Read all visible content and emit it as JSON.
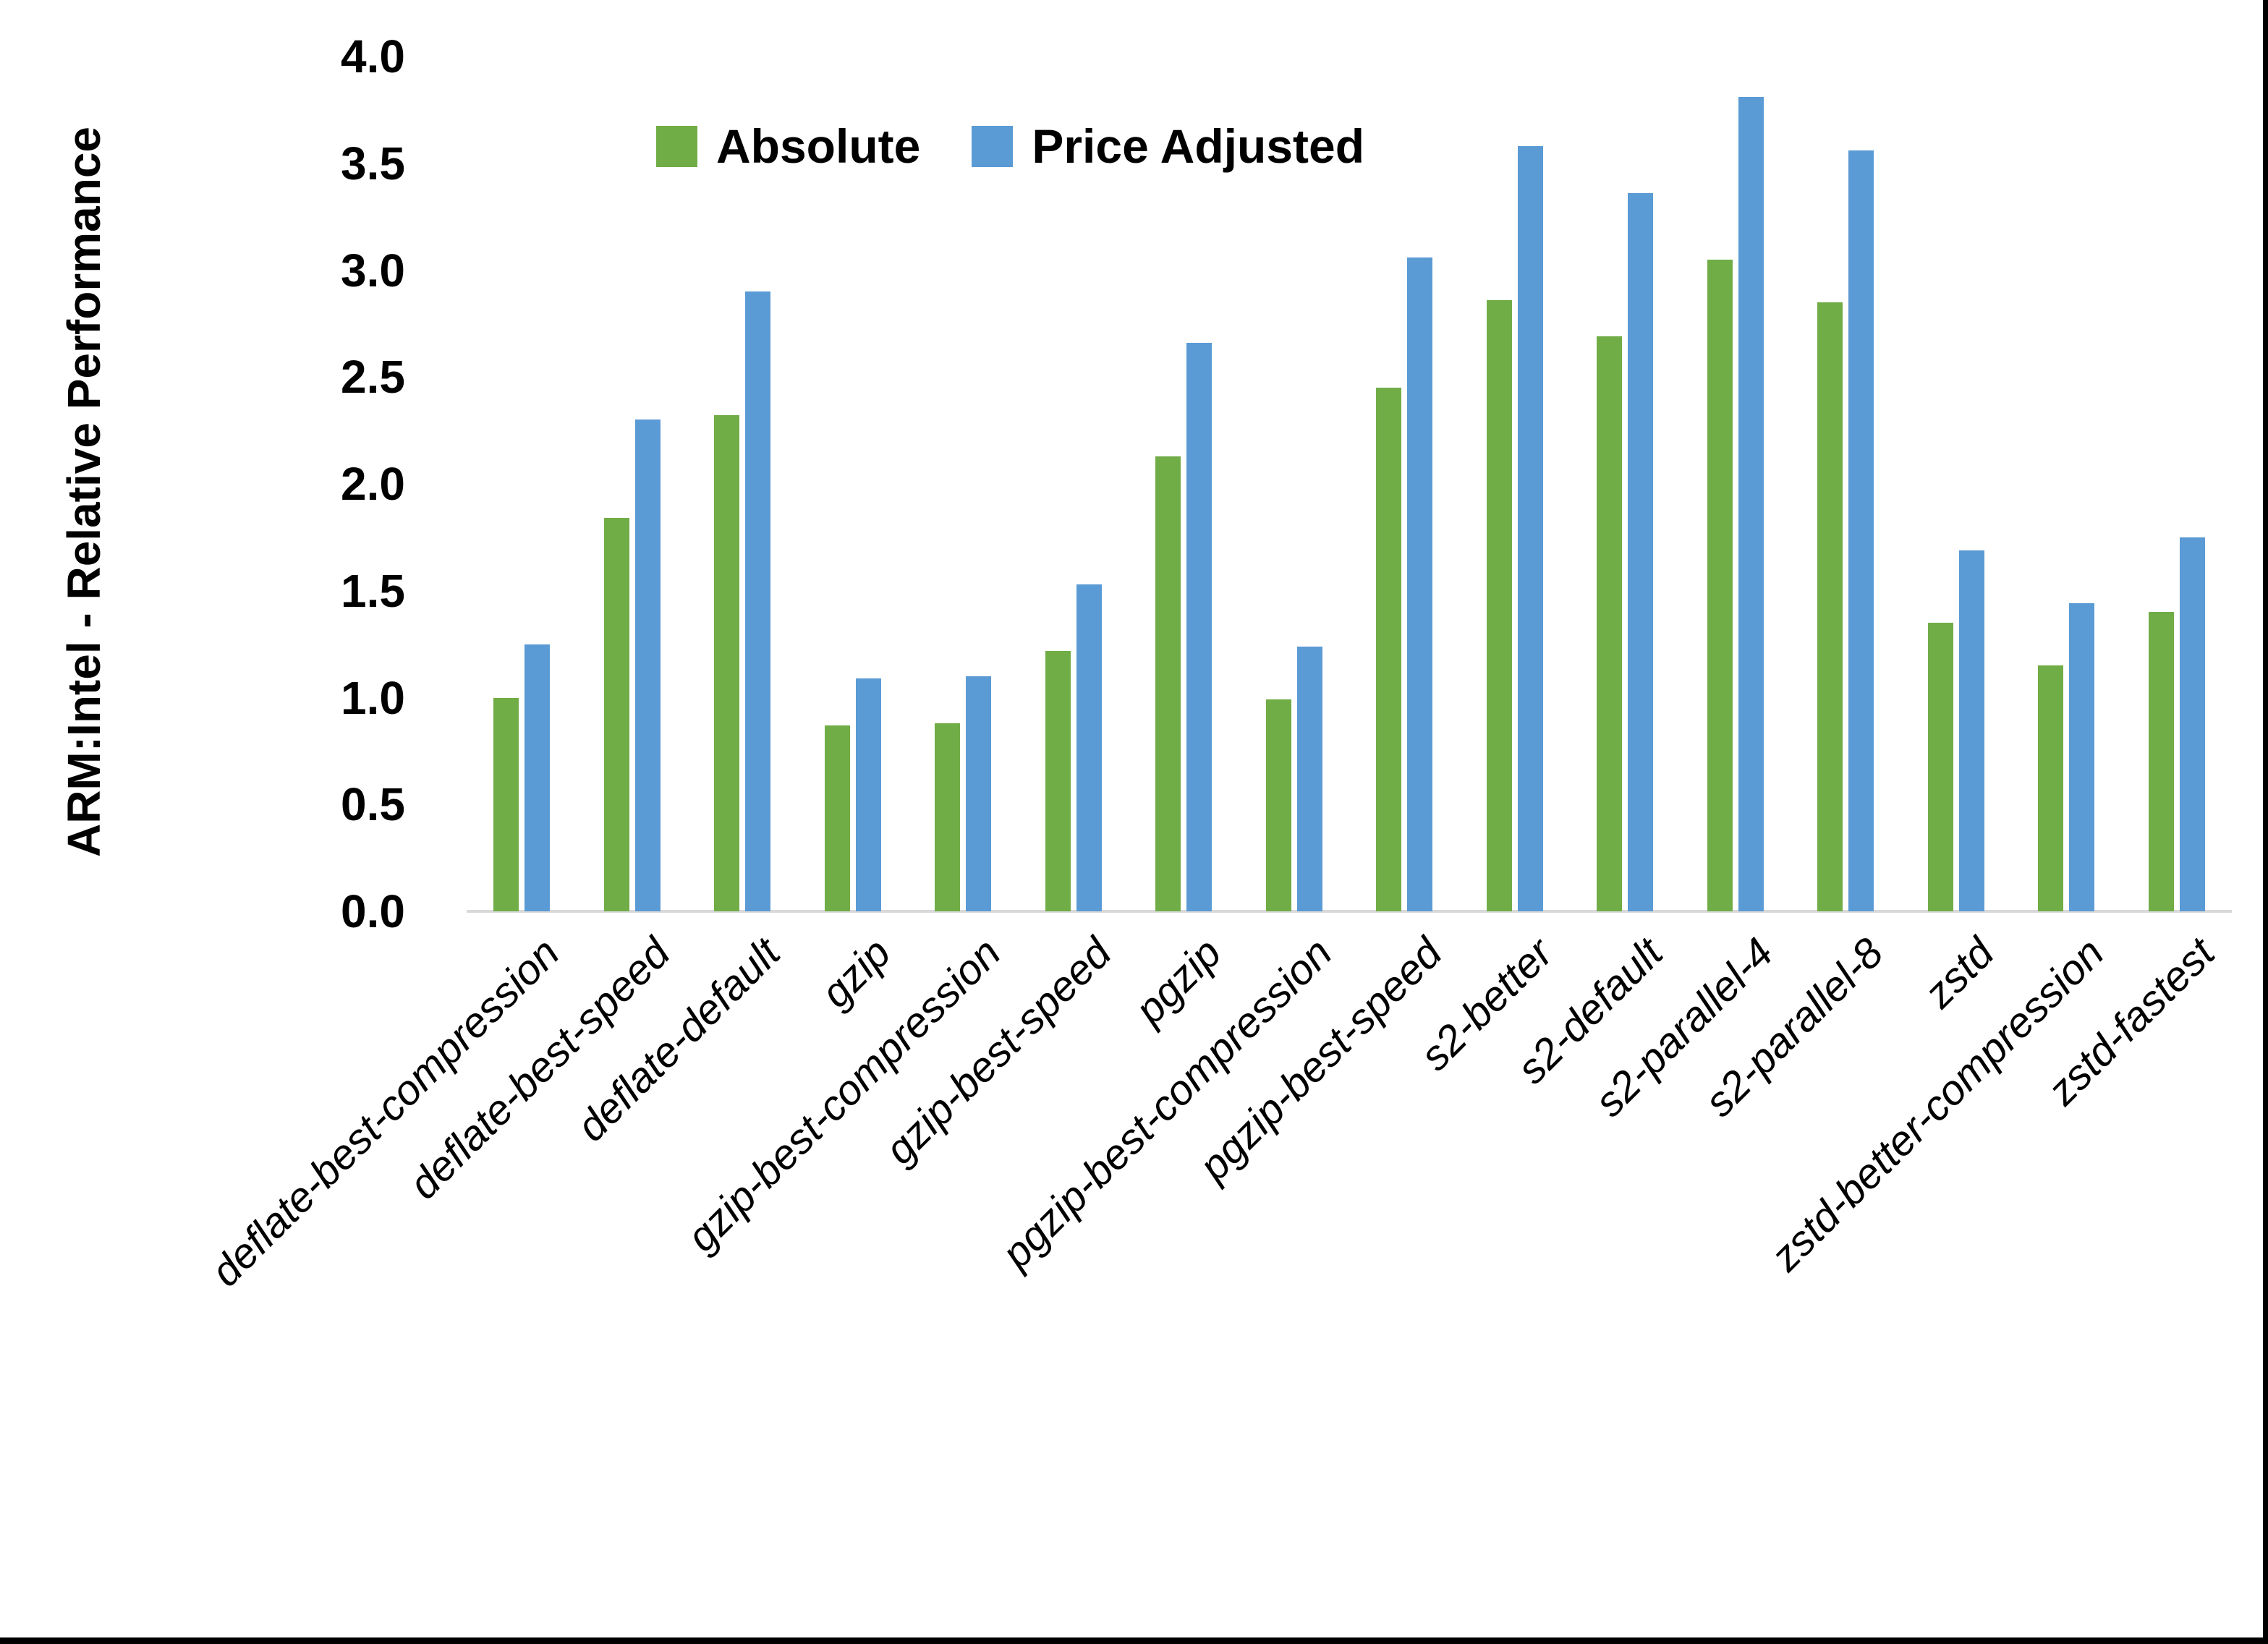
{
  "figure": {
    "y_axis_title": "ARM:Intel - Relative Performance",
    "colors": {
      "absolute": "#70AD47",
      "price_adjusted": "#5B9BD5",
      "axis_line": "#D9D9D9",
      "text": "#000000",
      "screen_edge": "#000000",
      "background": "#FFFFFF"
    }
  },
  "chart_data": {
    "type": "bar",
    "title": "",
    "xlabel": "",
    "ylabel": "ARM:Intel - Relative Performance",
    "ylim": [
      0.0,
      4.0
    ],
    "ytick_step": 0.5,
    "ytick_labels": [
      "0.0",
      "0.5",
      "1.0",
      "1.5",
      "2.0",
      "2.5",
      "3.0",
      "3.5",
      "4.0"
    ],
    "grid": false,
    "legend_position": "top-center",
    "categories": [
      "deflate-best-compression",
      "deflate-best-speed",
      "deflate-default",
      "gzip",
      "gzip-best-compression",
      "gzip-best-speed",
      "pgzip",
      "pgzip-best-compression",
      "pgzip-best-speed",
      "s2-better",
      "s2-default",
      "s2-parallel-4",
      "s2-parallel-8",
      "zstd",
      "zstd-better-compression",
      "zstd-fastest"
    ],
    "series": [
      {
        "name": "Absolute",
        "color": "#70AD47",
        "values": [
          1.0,
          1.84,
          2.32,
          0.87,
          0.88,
          1.22,
          2.13,
          0.99,
          2.45,
          2.86,
          2.69,
          3.05,
          2.85,
          1.35,
          1.15,
          1.4
        ]
      },
      {
        "name": "Price Adjusted",
        "color": "#5B9BD5",
        "values": [
          1.25,
          2.3,
          2.9,
          1.09,
          1.1,
          1.53,
          2.66,
          1.24,
          3.06,
          3.58,
          3.36,
          3.81,
          3.56,
          1.69,
          1.44,
          1.75
        ]
      }
    ]
  }
}
